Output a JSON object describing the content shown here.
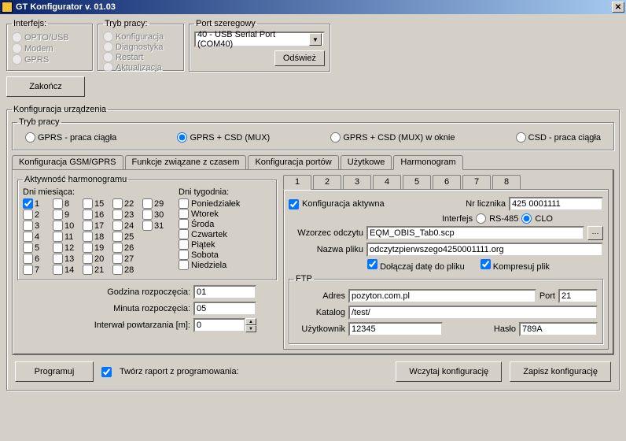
{
  "window": {
    "title": "GT Konfigurator v. 01.03"
  },
  "interface_group": {
    "legend": "Interfejs:",
    "opt1": "OPTO/USB",
    "opt2": "Modem",
    "opt3": "GPRS"
  },
  "mode_group": {
    "legend": "Tryb pracy:",
    "opt1": "Konfiguracja",
    "opt2": "Diagnostyka",
    "opt3": "Restart",
    "opt4": "Aktualizacja"
  },
  "port_group": {
    "legend": "Port szeregowy",
    "value": "40 - USB Serial Port (COM40)",
    "refresh": "Odśwież"
  },
  "exit_btn": "Zakończ",
  "device_cfg": {
    "legend": "Konfiguracja urządzenia",
    "work_mode": {
      "legend": "Tryb pracy",
      "o1": "GPRS - praca ciągła",
      "o2": "GPRS + CSD (MUX)",
      "o3": "GPRS + CSD (MUX) w oknie",
      "o4": "CSD - praca ciągła"
    },
    "main_tabs": {
      "t1": "Konfiguracja GSM/GPRS",
      "t2": "Funkcje związane z czasem",
      "t3": "Konfiguracja portów",
      "t4": "Użytkowe",
      "t5": "Harmonogram"
    },
    "schedule": {
      "activity_legend": "Aktywność harmonogramu",
      "days_month_label": "Dni miesiąca:",
      "days_week_label": "Dni tygodnia:",
      "weekdays": {
        "d1": "Poniedziałek",
        "d2": "Wtorek",
        "d3": "Środa",
        "d4": "Czwartek",
        "d5": "Piątek",
        "d6": "Sobota",
        "d7": "Niedziela"
      },
      "start_hour_label": "Godzina rozpoczęcia:",
      "start_min_label": "Minuta rozpoczęcia:",
      "interval_label": "Interwał powtarzania [m]:",
      "start_hour": "01",
      "start_min": "05",
      "interval": "0"
    },
    "inner_tabs": {
      "t1": "1",
      "t2": "2",
      "t3": "3",
      "t4": "4",
      "t5": "5",
      "t6": "6",
      "t7": "7",
      "t8": "8"
    },
    "cfg_active_label": "Konfiguracja aktywna",
    "meter_no_label": "Nr licznika",
    "meter_no": "425 0001111",
    "iface_label": "Interfejs",
    "iface_o1": "RS-485",
    "iface_o2": "CLO",
    "pattern_label": "Wzorzec odczytu",
    "pattern": "EQM_OBIS_Tab0.scp",
    "filename_label": "Nazwa pliku",
    "filename": "odczytzpierwszego4250001111.org",
    "append_date": "Dołączaj datę do pliku",
    "compress": "Kompresuj plik",
    "ftp": {
      "legend": "FTP",
      "addr_label": "Adres",
      "addr": "pozyton.com.pl",
      "port_label": "Port",
      "port": "21",
      "dir_label": "Katalog",
      "dir": "/test/",
      "user_label": "Użytkownik",
      "user": "12345",
      "pass_label": "Hasło",
      "pass": "789A"
    }
  },
  "bottom": {
    "program": "Programuj",
    "report": "Twórz raport z programowania:",
    "load": "Wczytaj konfigurację",
    "save": "Zapisz konfigurację"
  }
}
